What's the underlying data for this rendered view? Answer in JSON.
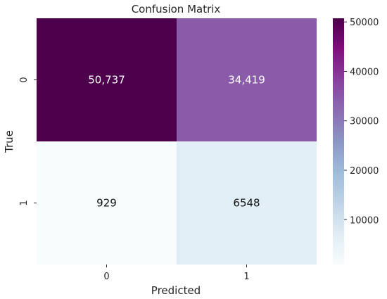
{
  "chart_data": {
    "type": "heatmap",
    "title": "Confusion Matrix",
    "xlabel": "Predicted",
    "ylabel": "True",
    "x_categories": [
      "0",
      "1"
    ],
    "y_categories": [
      "0",
      "1"
    ],
    "values": [
      [
        50737,
        34419
      ],
      [
        929,
        6548
      ]
    ],
    "cell_labels": [
      [
        "50,737",
        "34,419"
      ],
      [
        "929",
        "6548"
      ]
    ],
    "colormap": "BuPu",
    "colorbar": {
      "min": 929,
      "max": 50737,
      "ticks": [
        10000,
        20000,
        30000,
        40000,
        50000
      ],
      "tick_labels": [
        "10000",
        "20000",
        "30000",
        "40000",
        "50000"
      ]
    },
    "grid": false,
    "legend": "colorbar-right"
  },
  "colors": {
    "gradient": [
      "#f7fcfd",
      "#e0ecf4",
      "#bfd3e6",
      "#9ebcda",
      "#8c96c6",
      "#8c6bb1",
      "#88419d",
      "#810f7c",
      "#4d004b"
    ]
  }
}
